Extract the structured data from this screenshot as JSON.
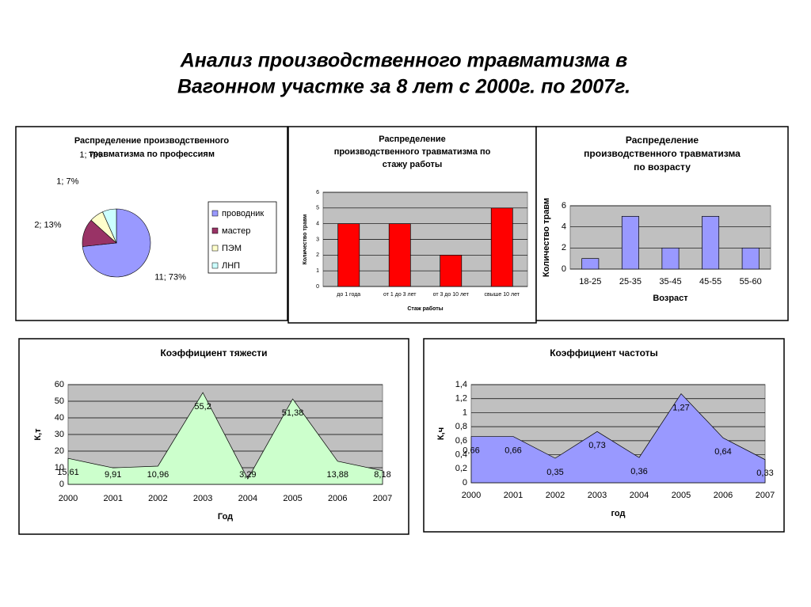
{
  "title": [
    "Анализ производственного травматизма в",
    "Вагонном участке за 8 лет с 2000г. по 2007г."
  ],
  "chart_data": [
    {
      "type": "pie",
      "title": [
        "Распределение производственного",
        "травматизма по профессиям"
      ],
      "categories": [
        "проводник",
        "мастер",
        "ПЭМ",
        "ЛНП"
      ],
      "values": [
        11,
        2,
        1,
        1
      ],
      "value_labels": [
        "11; 73%",
        "2; 13%",
        "1; 7%",
        "1; 7%"
      ],
      "colors": [
        "#9999ff",
        "#993366",
        "#ffffcc",
        "#ccffff"
      ],
      "legend": "right"
    },
    {
      "type": "bar",
      "title": [
        "Распределение",
        "производственного травматизма по",
        "стажу работы"
      ],
      "categories": [
        "до 1 года",
        "от 1 до 3 лет",
        "от 3 до 10 лет",
        "свыше 10 лет"
      ],
      "values": [
        4,
        4,
        2,
        5
      ],
      "color": "#ff0000",
      "ylim": [
        0,
        6
      ],
      "yticks": [
        0,
        1,
        2,
        3,
        4,
        5,
        6
      ],
      "grid": true,
      "ylabel": "Количество травм",
      "xlabel": "Стаж работы"
    },
    {
      "type": "bar",
      "title": [
        "Распределение",
        "производственного травматизма",
        "по возрасту"
      ],
      "categories": [
        "18-25",
        "25-35",
        "35-45",
        "45-55",
        "55-60"
      ],
      "values": [
        1,
        5,
        2,
        5,
        2
      ],
      "color": "#9999ff",
      "ylim": [
        0,
        6
      ],
      "yticks": [
        0,
        2,
        4,
        6
      ],
      "grid": true,
      "ylabel": "Количество травм",
      "xlabel": "Возраст"
    },
    {
      "type": "area",
      "title": [
        "Коэффициент тяжести"
      ],
      "categories": [
        "2000",
        "2001",
        "2002",
        "2003",
        "2004",
        "2005",
        "2006",
        "2007"
      ],
      "values": [
        15.61,
        9.91,
        10.96,
        55.2,
        3.29,
        51.38,
        13.88,
        8.18
      ],
      "value_labels": [
        "15,61",
        "9,91",
        "10,96",
        "55,2",
        "3,29",
        "51,38",
        "13,88",
        "8,18"
      ],
      "color": "#ccffcc",
      "ylim": [
        0,
        60
      ],
      "yticks": [
        0,
        10,
        20,
        30,
        40,
        50,
        60
      ],
      "grid": true,
      "ylabel": "К,т",
      "xlabel": "Год"
    },
    {
      "type": "area",
      "title": [
        "Коэффициент частоты"
      ],
      "categories": [
        "2000",
        "2001",
        "2002",
        "2003",
        "2004",
        "2005",
        "2006",
        "2007"
      ],
      "values": [
        0.66,
        0.66,
        0.35,
        0.73,
        0.36,
        1.27,
        0.64,
        0.33
      ],
      "value_labels": [
        "0,66",
        "0,66",
        "0,35",
        "0,73",
        "0,36",
        "1,27",
        "0,64",
        "0,33"
      ],
      "color": "#9999ff",
      "ylim": [
        0,
        1.4
      ],
      "yticks": [
        0,
        {
          "value": 0.2,
          "label": "0,2"
        },
        {
          "value": 0.4,
          "label": "0,4"
        },
        {
          "value": 0.6,
          "label": "0,6"
        },
        {
          "value": 0.8,
          "label": "0,8"
        },
        1,
        {
          "value": 1.2,
          "label": "1,2"
        },
        {
          "value": 1.4,
          "label": "1,4"
        }
      ],
      "grid": true,
      "ylabel": "К,ч",
      "xlabel": "год"
    }
  ]
}
